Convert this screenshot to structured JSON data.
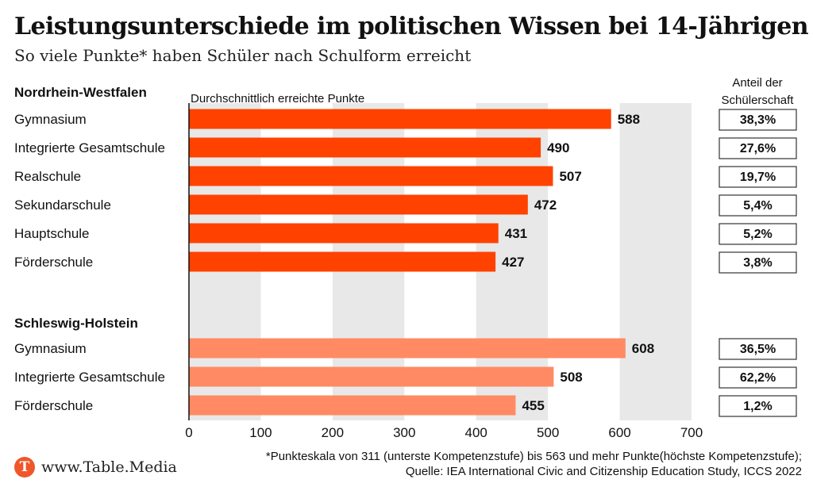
{
  "header": {
    "title": "Leistungsunterschiede im politischen Wissen bei 14-Jährigen",
    "subtitle": "So viele Punkte* haben Schüler nach Schulform erreicht"
  },
  "chart_data": {
    "type": "bar",
    "orientation": "horizontal",
    "xlabel": "Durchschnittlich erreichte Punkte",
    "xlim": [
      0,
      700
    ],
    "xticks": [
      0,
      100,
      200,
      300,
      400,
      500,
      600,
      700
    ],
    "share_header": "Anteil der Schülerschaft",
    "groups": [
      {
        "name": "Nordrhein-Westfalen",
        "color": "#ff4200",
        "rows": [
          {
            "category": "Gymnasium",
            "value": 588,
            "share": "38,3%"
          },
          {
            "category": "Integrierte Gesamtschule",
            "value": 490,
            "share": "27,6%"
          },
          {
            "category": "Realschule",
            "value": 507,
            "share": "19,7%"
          },
          {
            "category": "Sekundarschule",
            "value": 472,
            "share": "5,4%"
          },
          {
            "category": "Hauptschule",
            "value": 431,
            "share": "5,2%"
          },
          {
            "category": "Förderschule",
            "value": 427,
            "share": "3,8%"
          }
        ]
      },
      {
        "name": "Schleswig-Holstein",
        "color": "#ff8a63",
        "rows": [
          {
            "category": "Gymnasium",
            "value": 608,
            "share": "36,5%"
          },
          {
            "category": "Integrierte Gesamtschule",
            "value": 508,
            "share": "62,2%"
          },
          {
            "category": "Förderschule",
            "value": 455,
            "share": "1,2%"
          }
        ]
      }
    ]
  },
  "footer": {
    "logo_letter": "T",
    "brand": "www.Table.Media",
    "footnote_line1": "*Punkteskala von 311 (unterste Kompetenzstufe) bis 563 und mehr Punkte(höchste Kompetenzstufe);",
    "footnote_line2": "Quelle: IEA International Civic and Citizenship Education Study, ICCS 2022"
  }
}
